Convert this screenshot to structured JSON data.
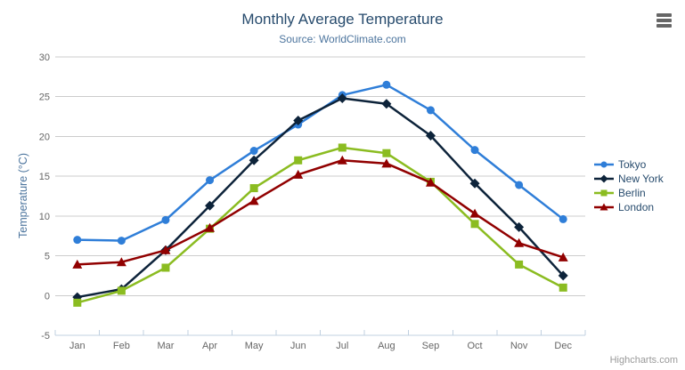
{
  "chart_data": {
    "type": "line",
    "title": "Monthly Average Temperature",
    "subtitle": "Source: WorldClimate.com",
    "ylabel": "Temperature (°C)",
    "xlabel": "",
    "ylim": [
      -5,
      30
    ],
    "ytick_step": 5,
    "grid": true,
    "legend_position": "right",
    "categories": [
      "Jan",
      "Feb",
      "Mar",
      "Apr",
      "May",
      "Jun",
      "Jul",
      "Aug",
      "Sep",
      "Oct",
      "Nov",
      "Dec"
    ],
    "series": [
      {
        "name": "Tokyo",
        "color": "#2f7ed8",
        "marker": "circle",
        "values": [
          7.0,
          6.9,
          9.5,
          14.5,
          18.2,
          21.5,
          25.2,
          26.5,
          23.3,
          18.3,
          13.9,
          9.6
        ]
      },
      {
        "name": "New York",
        "color": "#0d233a",
        "marker": "diamond",
        "values": [
          -0.2,
          0.8,
          5.7,
          11.3,
          17.0,
          22.0,
          24.8,
          24.1,
          20.1,
          14.1,
          8.6,
          2.5
        ]
      },
      {
        "name": "Berlin",
        "color": "#8bbc21",
        "marker": "square",
        "values": [
          -0.9,
          0.6,
          3.5,
          8.4,
          13.5,
          17.0,
          18.6,
          17.9,
          14.3,
          9.0,
          3.9,
          1.0
        ]
      },
      {
        "name": "London",
        "color": "#910000",
        "marker": "triangle",
        "values": [
          3.9,
          4.2,
          5.7,
          8.5,
          11.9,
          15.2,
          17.0,
          16.6,
          14.2,
          10.3,
          6.6,
          4.8
        ]
      }
    ]
  },
  "credit": "Highcharts.com",
  "icons": {
    "context_menu": "hamburger-icon"
  },
  "styles": {
    "title_color": "#274b6d",
    "subtitle_color": "#4d759e",
    "axis_title_color": "#4d759e",
    "tick_label_color": "#666666",
    "grid_color": "#cccccc",
    "axis_line_color": "#c0d0e0",
    "legend_text_color": "#274b6d",
    "credit_color": "#999999",
    "menu_icon_color": "#666666"
  }
}
